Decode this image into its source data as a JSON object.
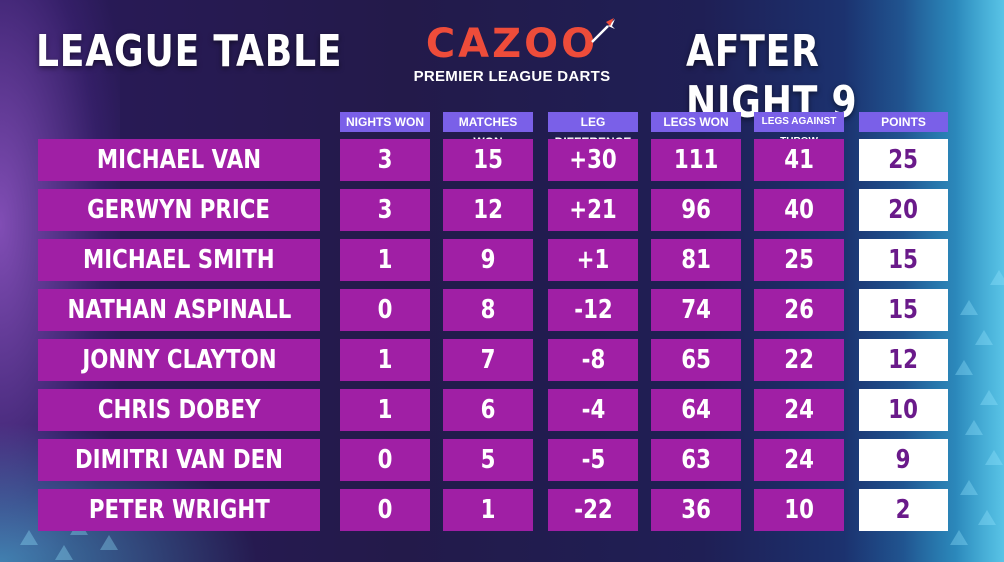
{
  "header": {
    "title_left": "LEAGUE TABLE",
    "title_right": "AFTER NIGHT 9",
    "logo_word": "CAZOO",
    "logo_sub": "PREMIER LEAGUE DARTS"
  },
  "columns": [
    "NIGHTS WON",
    "MATCHES WON",
    "LEG DIFFERENCE",
    "LEGS WON",
    "LEGS AGAINST THROW",
    "POINTS"
  ],
  "rows": [
    {
      "name": "MICHAEL VAN GERWEN",
      "nights": "3",
      "matches": "15",
      "leg_diff": "+30",
      "legs_won": "111",
      "against": "41",
      "points": "25"
    },
    {
      "name": "GERWYN PRICE",
      "nights": "3",
      "matches": "12",
      "leg_diff": "+21",
      "legs_won": "96",
      "against": "40",
      "points": "20"
    },
    {
      "name": "MICHAEL SMITH",
      "nights": "1",
      "matches": "9",
      "leg_diff": "+1",
      "legs_won": "81",
      "against": "25",
      "points": "15"
    },
    {
      "name": "NATHAN ASPINALL",
      "nights": "0",
      "matches": "8",
      "leg_diff": "-12",
      "legs_won": "74",
      "against": "26",
      "points": "15"
    },
    {
      "name": "JONNY CLAYTON",
      "nights": "1",
      "matches": "7",
      "leg_diff": "-8",
      "legs_won": "65",
      "against": "22",
      "points": "12"
    },
    {
      "name": "CHRIS DOBEY",
      "nights": "1",
      "matches": "6",
      "leg_diff": "-4",
      "legs_won": "64",
      "against": "24",
      "points": "10"
    },
    {
      "name": "DIMITRI VAN DEN BERGH",
      "nights": "0",
      "matches": "5",
      "leg_diff": "-5",
      "legs_won": "63",
      "against": "24",
      "points": "9"
    },
    {
      "name": "PETER WRIGHT",
      "nights": "0",
      "matches": "1",
      "leg_diff": "-22",
      "legs_won": "36",
      "against": "10",
      "points": "2"
    }
  ],
  "colors": {
    "row_bg": "#a01fa5",
    "header_bg": "#7a60e8",
    "points_bg": "#ffffff",
    "points_text": "#6a1a8a",
    "logo": "#ee4c3a"
  }
}
